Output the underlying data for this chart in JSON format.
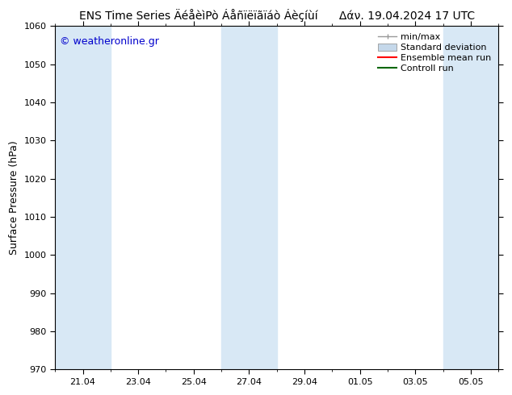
{
  "title_left": "ENS Time Series ÄéåèìPò Áåñïëïãïáò Áèçíùí",
  "title_right": "Δάν. 19.04.2024 17 UTC",
  "ylabel": "Surface Pressure (hPa)",
  "watermark": "© weatheronline.gr",
  "watermark_color": "#0000cc",
  "ylim": [
    970,
    1060
  ],
  "yticks": [
    970,
    980,
    990,
    1000,
    1010,
    1020,
    1030,
    1040,
    1050,
    1060
  ],
  "xtick_labels": [
    "21.04",
    "23.04",
    "25.04",
    "27.04",
    "29.04",
    "01.05",
    "03.05",
    "05.05"
  ],
  "xtick_positions": [
    21,
    23,
    25,
    27,
    29,
    31,
    33,
    35
  ],
  "xlim": [
    20,
    36
  ],
  "background_color": "#ffffff",
  "plot_bg_color": "#ffffff",
  "shaded_band_color": "#d8e8f5",
  "legend_entries": [
    "min/max",
    "Standard deviation",
    "Ensemble mean run",
    "Controll run"
  ],
  "legend_colors": [
    "#999999",
    "#c5d8ea",
    "#ff0000",
    "#006600"
  ],
  "shaded_ranges": [
    [
      20,
      22
    ],
    [
      26,
      28
    ],
    [
      34,
      36
    ]
  ],
  "title_fontsize": 10,
  "axis_fontsize": 9,
  "tick_fontsize": 8,
  "legend_fontsize": 8,
  "fig_width": 6.34,
  "fig_height": 4.9,
  "dpi": 100
}
